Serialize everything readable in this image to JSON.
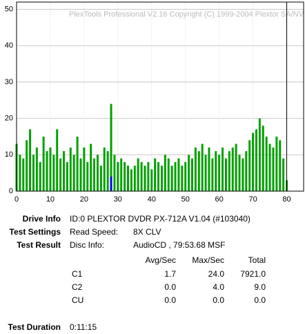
{
  "chart_data": {
    "type": "bar",
    "annotation": "PlexTools Professional V2.16 Copyright (C) 1999-2004 Plextor SA/NV",
    "xlim": [
      0,
      85
    ],
    "ylim": [
      0,
      52
    ],
    "xticks": [
      0,
      10,
      20,
      30,
      40,
      50,
      60,
      70,
      80
    ],
    "yticks": [
      0,
      10,
      20,
      30,
      40,
      50
    ],
    "grid": true,
    "marker_x": 80,
    "series": [
      {
        "name": "C1",
        "color": "#00a000",
        "x": [
          0,
          1,
          2,
          3,
          4,
          5,
          6,
          7,
          8,
          9,
          10,
          11,
          12,
          13,
          14,
          15,
          16,
          17,
          18,
          19,
          20,
          21,
          22,
          23,
          24,
          25,
          26,
          27,
          28,
          29,
          30,
          31,
          32,
          33,
          34,
          35,
          36,
          37,
          38,
          39,
          40,
          41,
          42,
          43,
          44,
          45,
          46,
          47,
          48,
          49,
          50,
          51,
          52,
          53,
          54,
          55,
          56,
          57,
          58,
          59,
          60,
          61,
          62,
          63,
          64,
          65,
          66,
          67,
          68,
          69,
          70,
          71,
          72,
          73,
          74,
          75,
          76,
          77,
          78,
          79,
          80
        ],
        "values": [
          13,
          10,
          9,
          14,
          17,
          10,
          12,
          8,
          15,
          11,
          12,
          10,
          17,
          9,
          11,
          8,
          12,
          10,
          15,
          9,
          12,
          8,
          13,
          9,
          10,
          7,
          12,
          11,
          24,
          10,
          8,
          9,
          8,
          7,
          6,
          7,
          9,
          8,
          7,
          8,
          6,
          9,
          8,
          7,
          10,
          9,
          7,
          8,
          9,
          7,
          8,
          10,
          9,
          12,
          11,
          13,
          10,
          12,
          9,
          11,
          10,
          12,
          9,
          11,
          12,
          13,
          10,
          9,
          11,
          14,
          16,
          17,
          20,
          18,
          15,
          13,
          12,
          15,
          14,
          9,
          3
        ]
      },
      {
        "name": "C2",
        "color": "#0000ff",
        "x": [
          28
        ],
        "values": [
          4
        ]
      }
    ]
  },
  "info": {
    "drive": {
      "label": "Drive Info",
      "value": "ID:0 PLEXTOR DVDR PX-712A V1.04 (#103040)"
    },
    "settings": {
      "label": "Test Settings",
      "key": "Read Speed:",
      "value": "8X CLV"
    },
    "result": {
      "label": "Test Result",
      "key": "Disc Info:",
      "value": "AudioCD , 79:53.68 MSF"
    },
    "table": {
      "header": [
        "Avg/Sec",
        "Max/Sec",
        "Total"
      ],
      "rows": [
        [
          "C1",
          "1.7",
          "24.0",
          "7921.0"
        ],
        [
          "C2",
          "0.0",
          "4.0",
          "9.0"
        ],
        [
          "CU",
          "0.0",
          "0.0",
          "0.0"
        ]
      ]
    },
    "duration": {
      "label": "Test Duration",
      "value": "0:11:15"
    }
  }
}
